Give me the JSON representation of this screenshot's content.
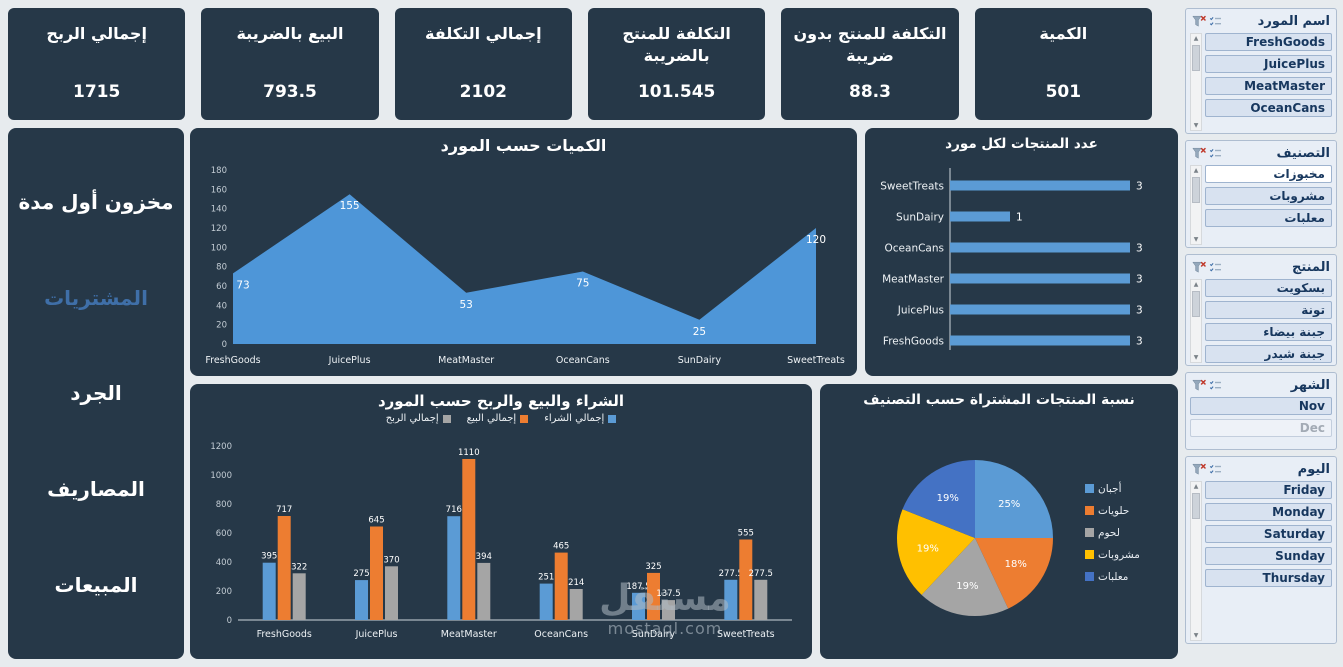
{
  "kpis": [
    {
      "title": "إجمالي الربح",
      "value": "1715"
    },
    {
      "title": "البيع بالضريبة",
      "value": "793.5"
    },
    {
      "title": "إجمالي التكلفة",
      "value": "2102"
    },
    {
      "title": "التكلفة للمنتج بالضريبة",
      "value": "101.545"
    },
    {
      "title": "التكلفة للمنتج بدون ضريبة",
      "value": "88.3"
    },
    {
      "title": "الكمية",
      "value": "501"
    }
  ],
  "sidebar": {
    "items": [
      {
        "label": "مخزون أول مدة",
        "active": false
      },
      {
        "label": "المشتريات",
        "active": true
      },
      {
        "label": "الجرد",
        "active": false
      },
      {
        "label": "المصاريف",
        "active": false
      },
      {
        "label": "المبيعات",
        "active": false
      }
    ]
  },
  "chart_data": [
    {
      "type": "area",
      "title": "الكميات حسب المورد",
      "categories": [
        "FreshGoods",
        "JuicePlus",
        "MeatMaster",
        "OceanCans",
        "SunDairy",
        "SweetTreats"
      ],
      "values": [
        73,
        155,
        53,
        75,
        25,
        120
      ],
      "ylim": [
        0,
        180
      ],
      "ytick": 20,
      "color": "#4e96d8",
      "grid": false,
      "legend": "none"
    },
    {
      "type": "bar",
      "orientation": "horizontal",
      "title": "عدد المنتجات لكل مورد",
      "categories": [
        "SweetTreats",
        "SunDairy",
        "OceanCans",
        "MeatMaster",
        "JuicePlus",
        "FreshGoods"
      ],
      "values": [
        3,
        1,
        3,
        3,
        3,
        3
      ],
      "xlim": [
        0,
        3
      ],
      "color": "#5b9bd5",
      "grid": false,
      "legend": "none"
    },
    {
      "type": "bar",
      "orientation": "vertical",
      "title": "الشراء والبيع والربح حسب المورد",
      "categories": [
        "FreshGoods",
        "JuicePlus",
        "MeatMaster",
        "OceanCans",
        "SunDairy",
        "SweetTreats"
      ],
      "series": [
        {
          "name": "إجمالي الشراء",
          "color": "#5b9bd5",
          "values": [
            395,
            275,
            716,
            251,
            187.5,
            277.5
          ]
        },
        {
          "name": "إجمالي البيع",
          "color": "#ed7d31",
          "values": [
            717,
            645,
            1110,
            465,
            325,
            555
          ]
        },
        {
          "name": "إجمالي الربح",
          "color": "#a5a5a5",
          "values": [
            322,
            370,
            394,
            214,
            137.5,
            277.5
          ]
        }
      ],
      "ylim": [
        0,
        1200
      ],
      "ytick": 200,
      "grid": false,
      "legend": "top"
    },
    {
      "type": "pie",
      "title": "نسبة المنتجات المشتراة حسب التصنيف",
      "slices": [
        {
          "label": "أجبان",
          "pct": 25,
          "color": "#5b9bd5"
        },
        {
          "label": "حلويات",
          "pct": 18,
          "color": "#ed7d31"
        },
        {
          "label": "لحوم",
          "pct": 19,
          "color": "#a5a5a5"
        },
        {
          "label": "مشروبات",
          "pct": 19,
          "color": "#ffc000"
        },
        {
          "label": "معلبات",
          "pct": 19,
          "color": "#4472c4"
        }
      ],
      "legend": "right"
    }
  ],
  "slicers": [
    {
      "title": "اسم المورد",
      "scrollbar": true,
      "items": [
        {
          "label": "FreshGoods",
          "state": "selected"
        },
        {
          "label": "JuicePlus",
          "state": "selected"
        },
        {
          "label": "MeatMaster",
          "state": "selected"
        },
        {
          "label": "OceanCans",
          "state": "selected"
        }
      ]
    },
    {
      "title": "التصنيف",
      "scrollbar": true,
      "items": [
        {
          "label": "مخبوزات",
          "state": "unselected"
        },
        {
          "label": "مشروبات",
          "state": "selected"
        },
        {
          "label": "معلبات",
          "state": "selected"
        }
      ]
    },
    {
      "title": "المنتج",
      "scrollbar": true,
      "items": [
        {
          "label": "بسكويت",
          "state": "selected"
        },
        {
          "label": "تونة",
          "state": "selected"
        },
        {
          "label": "جبنة بيضاء",
          "state": "selected"
        },
        {
          "label": "جبنة شيدر",
          "state": "selected"
        }
      ]
    },
    {
      "title": "الشهر",
      "scrollbar": false,
      "items": [
        {
          "label": "Nov",
          "state": "selected"
        },
        {
          "label": "Dec",
          "state": "nodata"
        }
      ]
    },
    {
      "title": "اليوم",
      "scrollbar": true,
      "items": [
        {
          "label": "Friday",
          "state": "selected"
        },
        {
          "label": "Monday",
          "state": "selected"
        },
        {
          "label": "Saturday",
          "state": "selected"
        },
        {
          "label": "Sunday",
          "state": "selected"
        },
        {
          "label": "Thursday",
          "state": "selected"
        }
      ]
    }
  ],
  "watermark": {
    "title": "مستقل",
    "domain": "mostaql.com"
  },
  "colors": {
    "panel": "#263848",
    "accent_blue": "#5b9bd5",
    "accent_orange": "#ed7d31",
    "accent_gray": "#a5a5a5",
    "accent_yellow": "#ffc000",
    "accent_navy": "#4472c4",
    "active_nav": "#3f6fa8"
  }
}
